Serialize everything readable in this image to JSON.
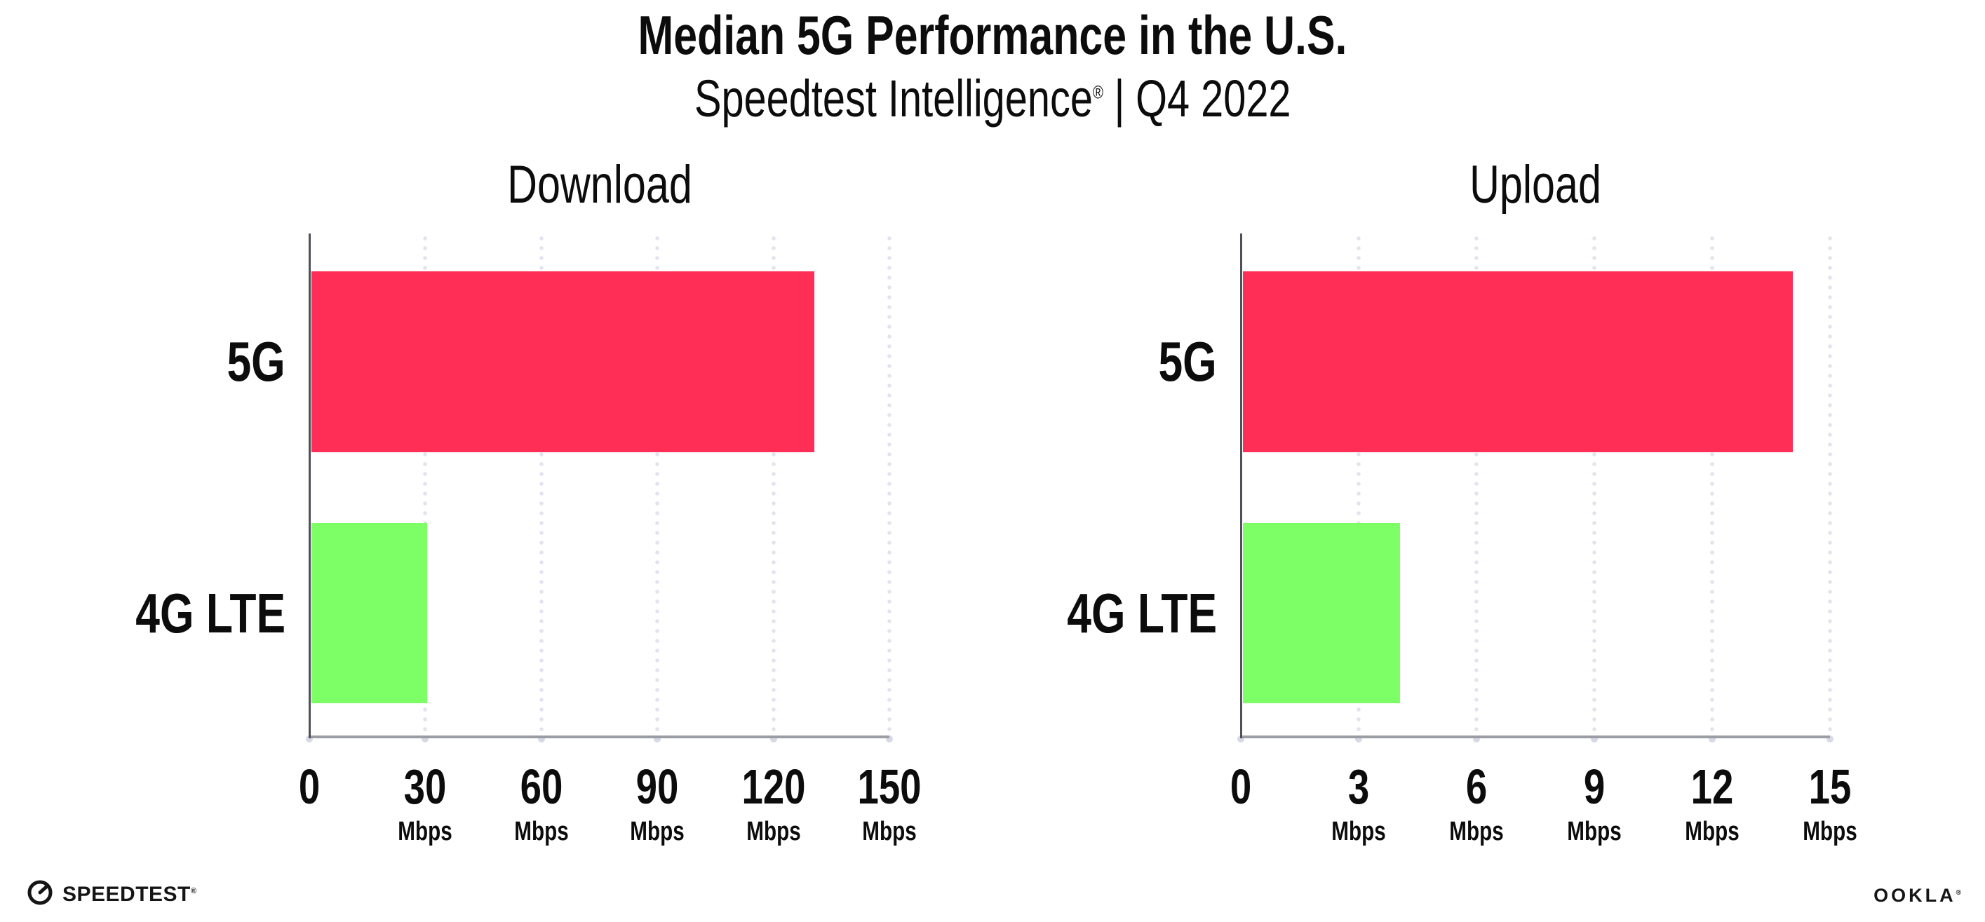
{
  "header": {
    "title": "Median 5G Performance in the U.S.",
    "subtitle": {
      "product": "Speedtest Intelligence",
      "reg_mark": "®",
      "separator": "|",
      "period": "Q4 2022"
    }
  },
  "chart_data": [
    {
      "type": "bar",
      "orientation": "horizontal",
      "title": "Download",
      "categories": [
        "5G",
        "4G LTE"
      ],
      "values": [
        130,
        30
      ],
      "unit": "Mbps",
      "xlabel": "",
      "ylabel": "",
      "xlim": [
        0,
        150
      ],
      "xticks": [
        0,
        30,
        60,
        90,
        120,
        150
      ],
      "bar_colors": [
        "#ff2e56",
        "#7dff66"
      ],
      "grid": "dotted vertical gridlines at major ticks",
      "legend_position": "none"
    },
    {
      "type": "bar",
      "orientation": "horizontal",
      "title": "Upload",
      "categories": [
        "5G",
        "4G LTE"
      ],
      "values": [
        14,
        4
      ],
      "unit": "Mbps",
      "xlabel": "",
      "ylabel": "",
      "xlim": [
        0,
        15
      ],
      "xticks": [
        0,
        3,
        6,
        9,
        12,
        15
      ],
      "bar_colors": [
        "#ff2e56",
        "#7dff66"
      ],
      "grid": "dotted vertical gridlines at major ticks",
      "legend_position": "none"
    }
  ],
  "footer": {
    "speedtest_wordmark": "SPEEDTEST",
    "speedtest_mark": "®",
    "ookla_wordmark": "OOKLA",
    "ookla_mark": "®"
  },
  "colors": {
    "bar_5g": "#ff2e56",
    "bar_4g_lte": "#7dff66",
    "x_axis_line": "#9b9ca4",
    "y_axis_line": "#4f5058",
    "gridline_dots": "#e2e3ee",
    "tick_dots": "#d7d9e6",
    "text": "#0c0c0c",
    "background": "#ffffff"
  }
}
